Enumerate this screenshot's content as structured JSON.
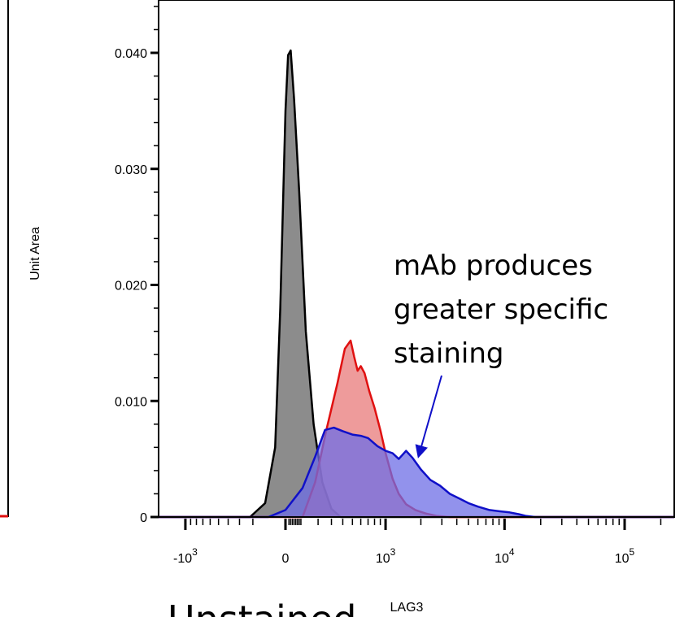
{
  "chart_data": {
    "type": "area",
    "ylabel": "Unit Area",
    "xlabel": "LAG3",
    "x_scale": "biexponential",
    "ylim": [
      0,
      0.042
    ],
    "y_ticks": [
      {
        "value": 0,
        "label": "0"
      },
      {
        "value": 0.01,
        "label": "0.010"
      },
      {
        "value": 0.02,
        "label": "0.020"
      },
      {
        "value": 0.03,
        "label": "0.030"
      },
      {
        "value": 0.04,
        "label": "0.040"
      }
    ],
    "x_ticks": [
      {
        "value": -1000,
        "base": "-10",
        "exp": "3"
      },
      {
        "value": 0,
        "base": "0",
        "exp": ""
      },
      {
        "value": 1000,
        "base": "10",
        "exp": "3"
      },
      {
        "value": 10000,
        "base": "10",
        "exp": "4"
      },
      {
        "value": 100000,
        "base": "10",
        "exp": "5"
      }
    ],
    "series": [
      {
        "color": "#000000",
        "fill": "#8c8c8c",
        "x": [
          -220,
          -120,
          -60,
          -30,
          0,
          15,
          30,
          50,
          80,
          120,
          170,
          230,
          300,
          380
        ],
        "y": [
          0,
          0.0012,
          0.006,
          0.018,
          0.035,
          0.0398,
          0.0402,
          0.036,
          0.028,
          0.016,
          0.008,
          0.003,
          0.0007,
          0
        ]
      },
      {
        "color": "#e01010",
        "fill": "#e87a7a",
        "x": [
          100,
          180,
          260,
          350,
          420,
          480,
          520,
          560,
          600,
          650,
          720,
          800,
          900,
          1000,
          1150,
          1300,
          1500,
          1800,
          2200,
          2700,
          3500
        ],
        "y": [
          0,
          0.003,
          0.0075,
          0.0115,
          0.0145,
          0.0152,
          0.0138,
          0.0126,
          0.013,
          0.0124,
          0.0108,
          0.0094,
          0.0075,
          0.0055,
          0.0033,
          0.002,
          0.0011,
          0.0006,
          0.0003,
          0.0001,
          0
        ]
      },
      {
        "color": "#1010c8",
        "fill": "#6e6ee6",
        "x": [
          -100,
          0,
          100,
          180,
          250,
          320,
          400,
          500,
          600,
          700,
          850,
          1000,
          1150,
          1300,
          1500,
          1700,
          2000,
          2400,
          2900,
          3500,
          4200,
          5000,
          6000,
          7500,
          9000,
          11000,
          13000,
          15000,
          18000
        ],
        "y": [
          0,
          0.0006,
          0.0025,
          0.0052,
          0.0075,
          0.0077,
          0.0074,
          0.0071,
          0.007,
          0.0068,
          0.0061,
          0.0057,
          0.0055,
          0.005,
          0.0057,
          0.0051,
          0.0041,
          0.0032,
          0.0027,
          0.002,
          0.0016,
          0.0012,
          0.0009,
          0.0006,
          0.0005,
          0.0004,
          0.00025,
          0.0001,
          0
        ]
      }
    ],
    "annotations": [
      {
        "lines": [
          "mAb produces",
          "greater specific",
          "staining"
        ],
        "color": "#000000",
        "arrow_color": "#1010c8"
      }
    ]
  },
  "fragments": {
    "bottom_text": "Unstained"
  },
  "colors": {
    "axis": "#000000",
    "left_panel_edge": "#000000",
    "left_panel_red": "#e01010"
  }
}
